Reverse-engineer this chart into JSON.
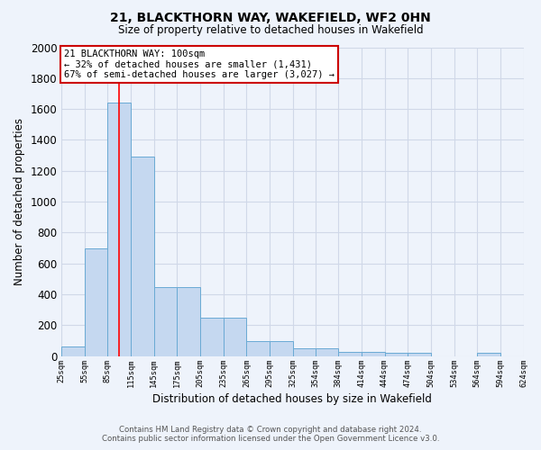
{
  "title1": "21, BLACKTHORN WAY, WAKEFIELD, WF2 0HN",
  "title2": "Size of property relative to detached houses in Wakefield",
  "xlabel": "Distribution of detached houses by size in Wakefield",
  "ylabel": "Number of detached properties",
  "footer1": "Contains HM Land Registry data © Crown copyright and database right 2024.",
  "footer2": "Contains public sector information licensed under the Open Government Licence v3.0.",
  "annotation_title": "21 BLACKTHORN WAY: 100sqm",
  "annotation_line2": "← 32% of detached houses are smaller (1,431)",
  "annotation_line3": "67% of semi-detached houses are larger (3,027) →",
  "property_size": 100,
  "bar_edges": [
    25,
    55,
    85,
    115,
    145,
    175,
    205,
    235,
    265,
    295,
    325,
    354,
    384,
    414,
    444,
    474,
    504,
    534,
    564,
    594,
    624
  ],
  "bar_values": [
    65,
    700,
    1640,
    1290,
    450,
    450,
    250,
    250,
    100,
    100,
    50,
    50,
    30,
    30,
    20,
    20,
    0,
    0,
    20,
    0,
    0
  ],
  "bar_color": "#c5d8f0",
  "bar_edge_color": "#6aaad4",
  "red_line_x": 100,
  "ylim": [
    0,
    2000
  ],
  "yticks": [
    0,
    200,
    400,
    600,
    800,
    1000,
    1200,
    1400,
    1600,
    1800,
    2000
  ],
  "bg_color": "#eef3fb",
  "plot_bg_color": "#eef3fb",
  "grid_color": "#d0d8e8",
  "annotation_box_color": "#ffffff",
  "annotation_box_edge_color": "#cc0000",
  "tick_labels": [
    "25sqm",
    "55sqm",
    "85sqm",
    "115sqm",
    "145sqm",
    "175sqm",
    "205sqm",
    "235sqm",
    "265sqm",
    "295sqm",
    "325sqm",
    "354sqm",
    "384sqm",
    "414sqm",
    "444sqm",
    "474sqm",
    "504sqm",
    "534sqm",
    "564sqm",
    "594sqm",
    "624sqm"
  ]
}
